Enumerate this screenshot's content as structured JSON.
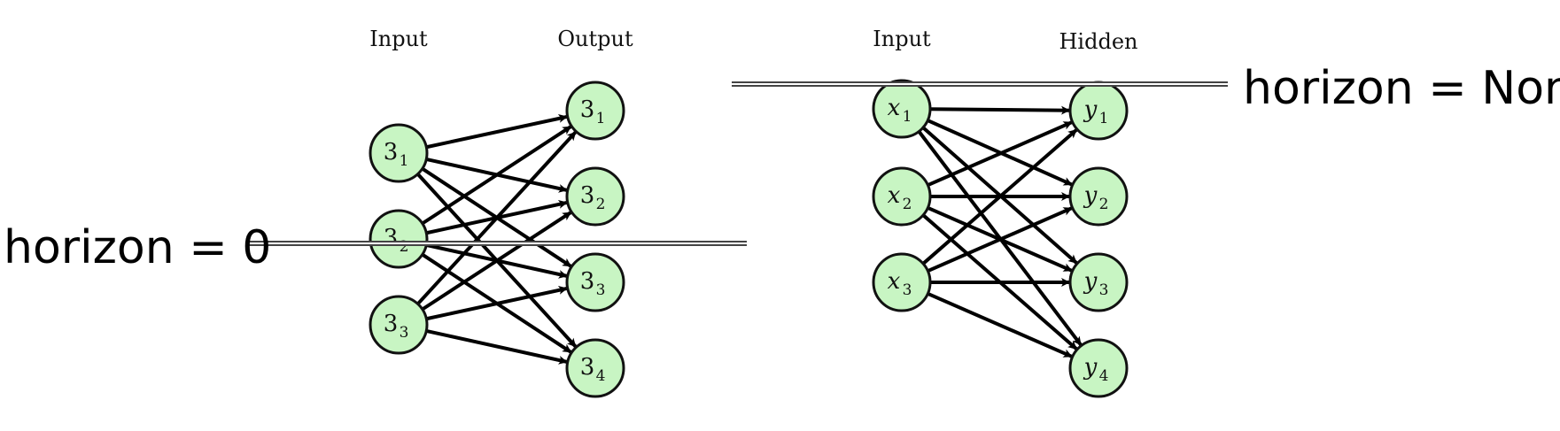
{
  "colors": {
    "node_fill": "#c8f5c3",
    "node_stroke": "#111111",
    "edge": "#000000",
    "horizon_line": "#555555"
  },
  "diagrams": [
    {
      "id": "left",
      "input_header": "Input",
      "output_header": "Output",
      "input_nodes": [
        {
          "base": "3",
          "sub": "1"
        },
        {
          "base": "3",
          "sub": "2"
        },
        {
          "base": "3",
          "sub": "3"
        }
      ],
      "output_nodes": [
        {
          "base": "3",
          "sub": "1"
        },
        {
          "base": "3",
          "sub": "2"
        },
        {
          "base": "3",
          "sub": "3"
        },
        {
          "base": "3",
          "sub": "4"
        }
      ],
      "horizon_label": "horizon = 0",
      "italic": false
    },
    {
      "id": "right",
      "input_header": "Input",
      "output_header": "Hidden",
      "input_nodes": [
        {
          "base": "x",
          "sub": "1"
        },
        {
          "base": "x",
          "sub": "2"
        },
        {
          "base": "x",
          "sub": "3"
        }
      ],
      "output_nodes": [
        {
          "base": "y",
          "sub": "1"
        },
        {
          "base": "y",
          "sub": "2"
        },
        {
          "base": "y",
          "sub": "3"
        },
        {
          "base": "y",
          "sub": "4"
        }
      ],
      "horizon_label": "horizon = None",
      "italic": true
    }
  ]
}
